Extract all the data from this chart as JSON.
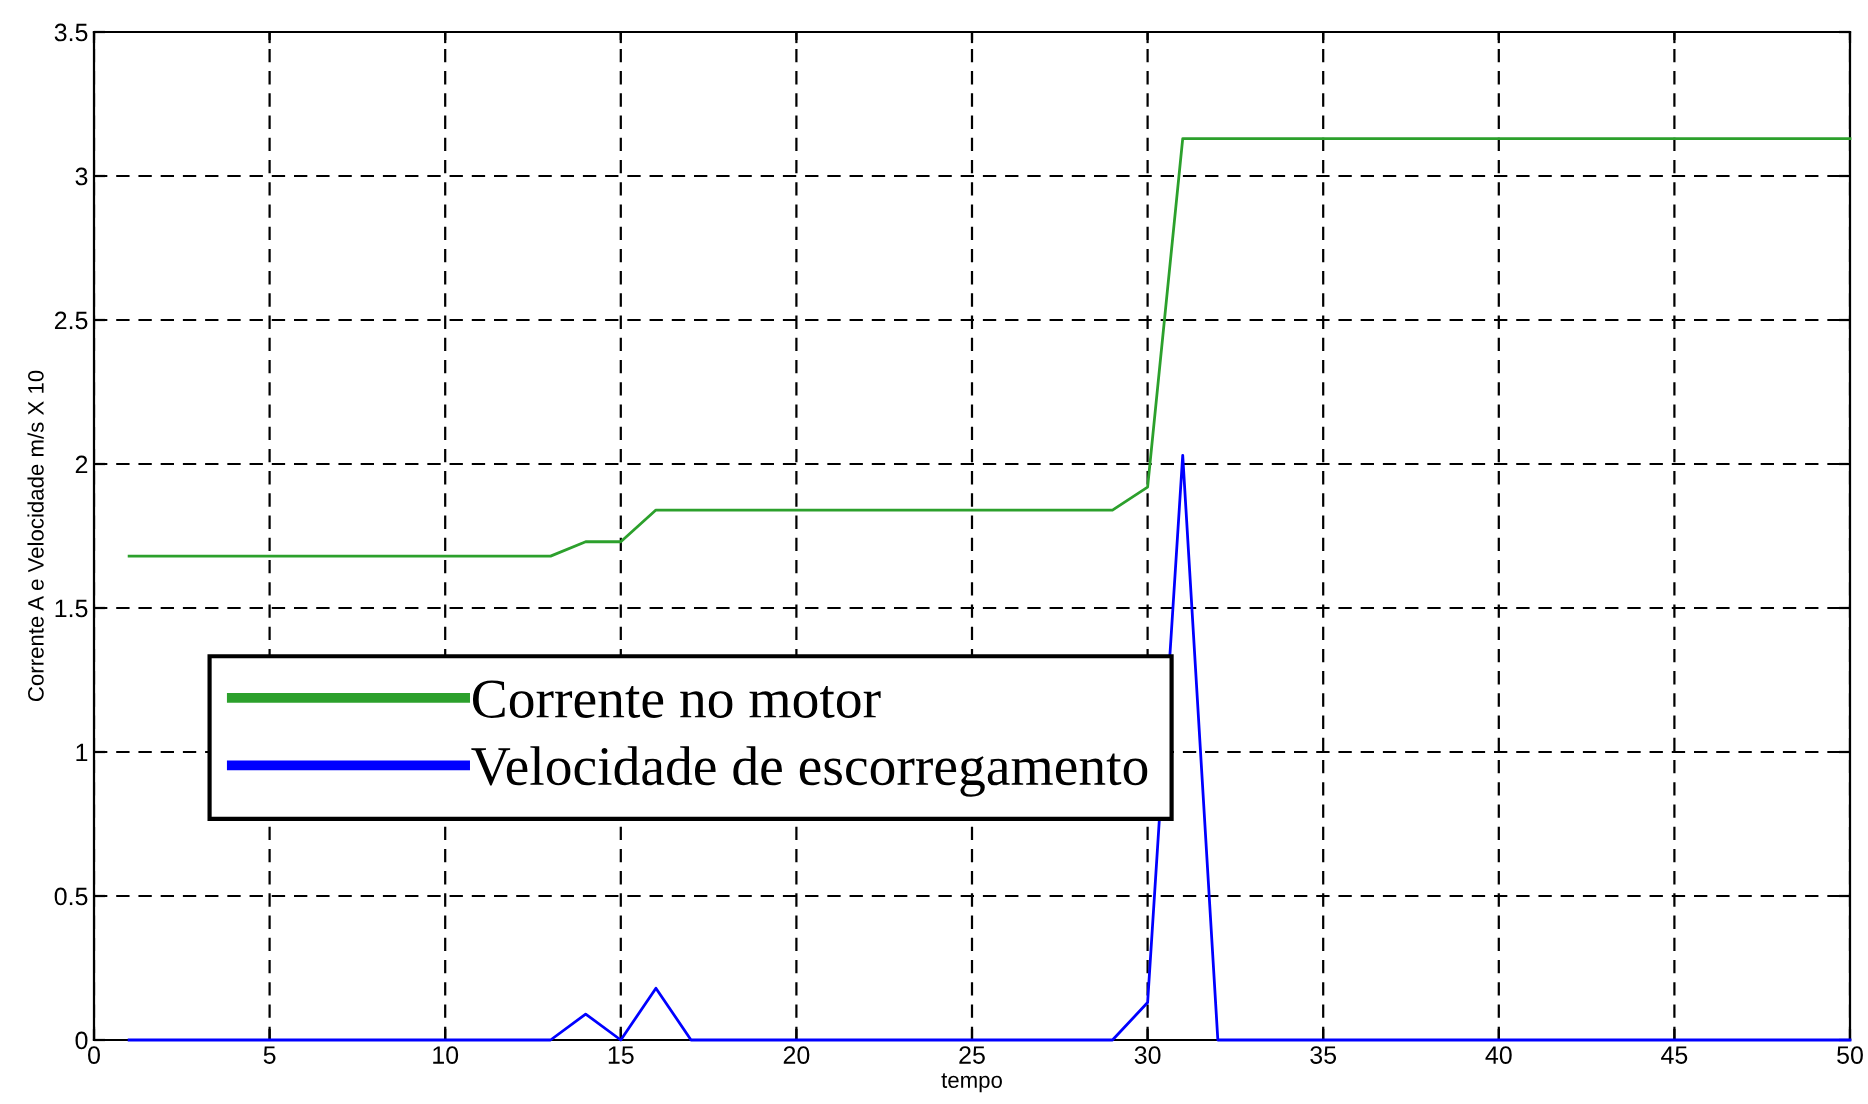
{
  "chart_data": {
    "type": "line",
    "xlabel": "tempo",
    "ylabel": "Corrente A e Velocidade m/s X 10",
    "x": [
      1,
      2,
      3,
      4,
      5,
      6,
      7,
      8,
      9,
      10,
      11,
      12,
      13,
      14,
      15,
      16,
      17,
      18,
      19,
      20,
      21,
      22,
      23,
      24,
      25,
      26,
      27,
      28,
      29,
      30,
      31,
      32,
      33,
      34,
      35,
      36,
      37,
      38,
      39,
      40,
      41,
      42,
      43,
      44,
      45,
      46,
      47,
      48,
      49,
      50
    ],
    "series": [
      {
        "name": "Corrente no motor",
        "color": "#2ca02c",
        "values": [
          1.68,
          1.68,
          1.68,
          1.68,
          1.68,
          1.68,
          1.68,
          1.68,
          1.68,
          1.68,
          1.68,
          1.68,
          1.68,
          1.73,
          1.73,
          1.84,
          1.84,
          1.84,
          1.84,
          1.84,
          1.84,
          1.84,
          1.84,
          1.84,
          1.84,
          1.84,
          1.84,
          1.84,
          1.84,
          1.92,
          3.13,
          3.13,
          3.13,
          3.13,
          3.13,
          3.13,
          3.13,
          3.13,
          3.13,
          3.13,
          3.13,
          3.13,
          3.13,
          3.13,
          3.13,
          3.13,
          3.13,
          3.13,
          3.13,
          3.13
        ]
      },
      {
        "name": "Velocidade de escorregamento",
        "color": "#0000ff",
        "values": [
          0,
          0,
          0,
          0,
          0,
          0,
          0,
          0,
          0,
          0,
          0,
          0,
          0,
          0.09,
          0,
          0.18,
          0,
          0,
          0,
          0,
          0,
          0,
          0,
          0,
          0,
          0,
          0,
          0,
          0,
          0.13,
          2.03,
          0,
          0,
          0,
          0,
          0,
          0,
          0,
          0,
          0,
          0,
          0,
          0,
          0,
          0,
          0,
          0,
          0,
          0,
          0
        ]
      }
    ],
    "xlim": [
      0,
      50
    ],
    "xticks": [
      0,
      5,
      10,
      15,
      20,
      25,
      30,
      35,
      40,
      45,
      50
    ],
    "ylim": [
      0,
      3.5
    ],
    "yticks": [
      0,
      0.5,
      1,
      1.5,
      2,
      2.5,
      3,
      3.5
    ],
    "grid": true,
    "legend": "center left",
    "line_style": "solid",
    "marker": "none"
  }
}
